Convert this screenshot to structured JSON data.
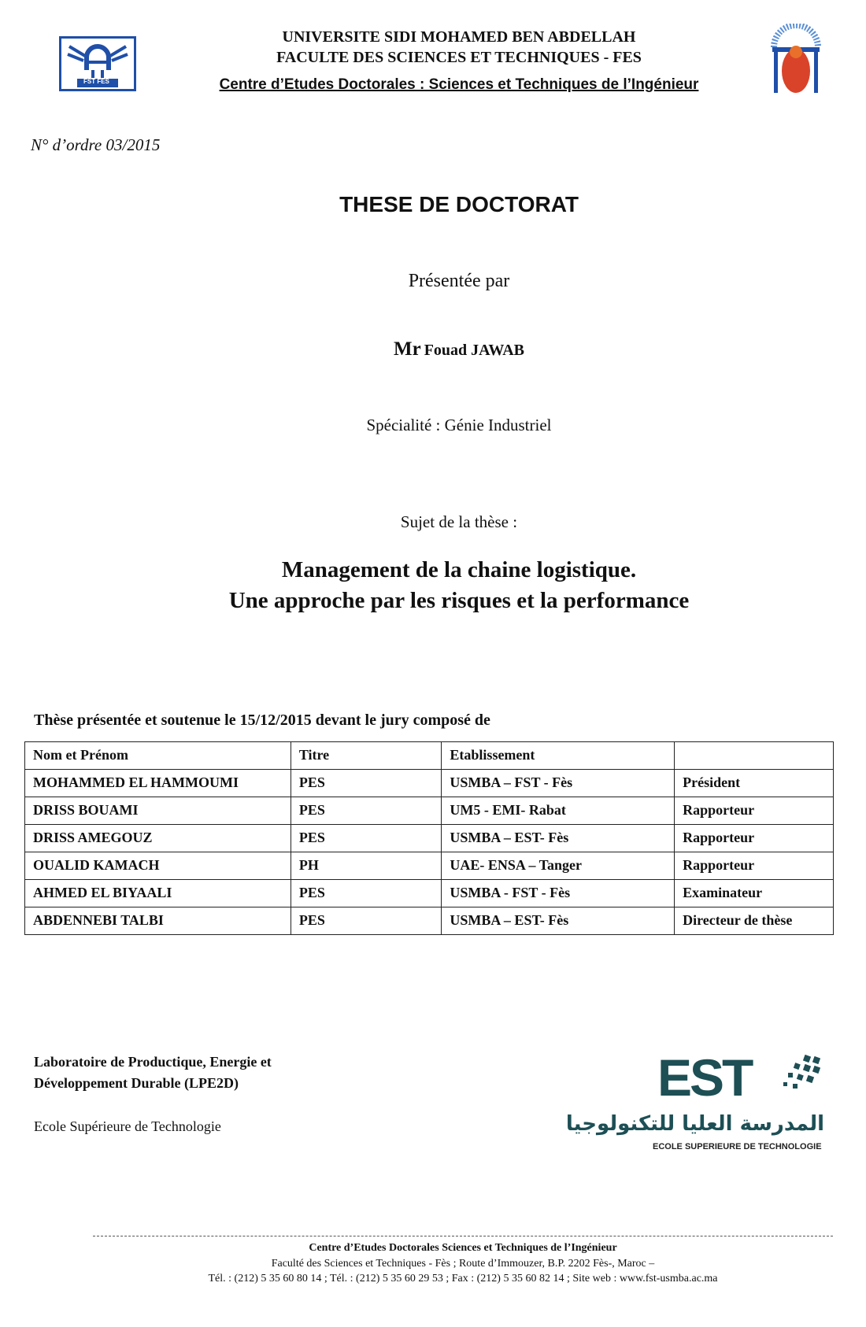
{
  "header": {
    "line1": "UNIVERSITE SIDI MOHAMED BEN ABDELLAH",
    "line2": "FACULTE DES SCIENCES ET TECHNIQUES - FES",
    "line3": "Centre d’Etudes Doctorales : Sciences et Techniques de l’Ingénieur",
    "left_logo_text": "FST FES"
  },
  "order_number": "N° d’ordre 03/2015",
  "title": "THESE DE DOCTORAT",
  "presented_by": "Présentée par",
  "candidate": {
    "prefix": "Mr",
    "name": "Fouad JAWAB"
  },
  "speciality": "Spécialité : Génie Industriel",
  "subject_label": "Sujet de la thèse :",
  "subject": {
    "line1": "Management de la chaine logistique.",
    "line2": "Une approche par les risques et la performance"
  },
  "jury": {
    "heading": "Thèse présentée et soutenue le 15/12/2015 devant le jury composé de",
    "columns": [
      "Nom et Prénom",
      "Titre",
      "Etablissement",
      ""
    ],
    "rows": [
      [
        "MOHAMMED EL HAMMOUMI",
        "PES",
        "USMBA – FST - Fès",
        "Président"
      ],
      [
        "DRISS BOUAMI",
        "PES",
        "UM5 - EMI- Rabat",
        "Rapporteur"
      ],
      [
        "DRISS AMEGOUZ",
        "PES",
        "USMBA – EST- Fès",
        "Rapporteur"
      ],
      [
        "OUALID KAMACH",
        "PH",
        "UAE-  ENSA – Tanger",
        "Rapporteur"
      ],
      [
        "AHMED EL BIYAALI",
        "PES",
        "USMBA - FST - Fès",
        "Examinateur"
      ],
      [
        "ABDENNEBI TALBI",
        "PES",
        "USMBA – EST- Fès",
        "Directeur de thèse"
      ]
    ]
  },
  "lab": {
    "line1": "Laboratoire de Productique, Energie et",
    "line2": "Développement Durable (LPE2D)",
    "school": "Ecole Supérieure de Technologie"
  },
  "est_logo": {
    "mark": "EST",
    "arabic": "المدرسة العليا للتكنولوجيا",
    "caption": "ECOLE SUPERIEURE DE TECHNOLOGIE",
    "color": "#1d4f55"
  },
  "footer": {
    "line1": "Centre d’Etudes Doctorales Sciences et Techniques de l’Ingénieur",
    "line2": "Faculté des Sciences et Techniques - Fès ; Route d’Immouzer, B.P. 2202 Fès-, Maroc –",
    "line3": "Tél. : (212) 5 35 60 80 14 ; Tél. : (212) 5 35 60 29 53 ;   Fax : (212) 5 35 60 82  14 ;   Site web : www.fst-usmba.ac.ma"
  },
  "colors": {
    "fst_blue": "#1f4fa8",
    "usmba_red": "#d9432a"
  }
}
